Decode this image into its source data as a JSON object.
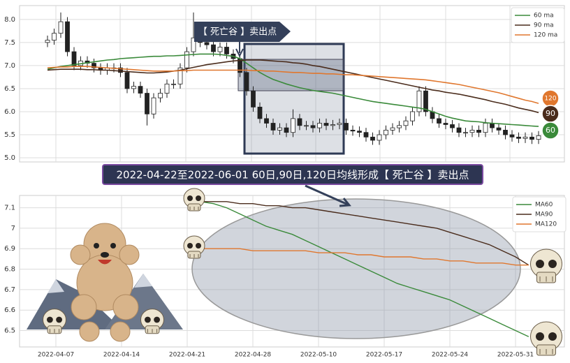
{
  "chart_data": [
    {
      "type": "candlestick",
      "annotation": "【 死亡谷 】卖出点",
      "end_labels": [
        "120",
        "90",
        "60"
      ],
      "open": [
        7.5,
        7.55,
        7.7,
        7.95,
        7.3,
        7.0,
        7.1,
        7.05,
        6.95,
        6.9,
        6.95,
        6.95,
        6.85,
        6.5,
        6.55,
        6.4,
        5.95,
        6.3,
        6.4,
        6.6,
        6.6,
        6.95,
        7.3,
        7.6,
        7.5,
        7.45,
        7.3,
        7.4,
        7.25,
        7.15,
        6.85,
        6.45,
        6.1,
        5.85,
        5.75,
        5.6,
        5.65,
        5.55,
        5.85,
        5.7,
        5.7,
        5.65,
        5.75,
        5.7,
        5.72,
        5.75,
        5.6,
        5.58,
        5.55,
        5.45,
        5.38,
        5.5,
        5.6,
        5.65,
        5.7,
        5.8,
        6.0,
        6.45,
        6.0,
        5.85,
        5.75,
        5.72,
        5.65,
        5.55,
        5.55,
        5.6,
        5.55,
        5.75,
        5.65,
        5.6,
        5.5,
        5.45,
        5.42,
        5.45,
        5.4
      ],
      "high": [
        7.65,
        7.8,
        8.15,
        8.05,
        7.4,
        7.2,
        7.2,
        7.15,
        7.05,
        7.05,
        7.05,
        7.05,
        6.95,
        6.65,
        6.65,
        6.5,
        6.4,
        6.5,
        6.7,
        6.7,
        7.05,
        7.4,
        8.15,
        7.9,
        7.6,
        7.55,
        7.5,
        7.5,
        7.35,
        7.25,
        6.95,
        6.55,
        6.2,
        5.95,
        5.85,
        5.75,
        5.75,
        6.05,
        5.95,
        5.8,
        5.8,
        5.85,
        5.85,
        5.82,
        5.85,
        5.85,
        5.7,
        5.68,
        5.65,
        5.55,
        5.6,
        5.7,
        5.75,
        5.8,
        5.9,
        6.1,
        6.55,
        6.55,
        6.1,
        5.95,
        5.85,
        5.82,
        5.75,
        5.65,
        5.7,
        5.7,
        5.85,
        5.85,
        5.75,
        5.7,
        5.6,
        5.55,
        5.55,
        5.55,
        5.58
      ],
      "low": [
        7.4,
        7.45,
        7.6,
        7.2,
        6.9,
        6.9,
        6.95,
        6.85,
        6.8,
        6.8,
        6.85,
        6.75,
        6.4,
        6.4,
        6.3,
        5.7,
        5.85,
        6.2,
        6.3,
        6.5,
        6.5,
        6.85,
        7.2,
        7.4,
        7.35,
        7.2,
        7.2,
        7.15,
        7.05,
        6.75,
        6.35,
        6.0,
        5.75,
        5.65,
        5.5,
        5.5,
        5.45,
        5.45,
        5.6,
        5.6,
        5.55,
        5.55,
        5.6,
        5.6,
        5.62,
        5.5,
        5.48,
        5.45,
        5.35,
        5.28,
        5.28,
        5.4,
        5.5,
        5.55,
        5.6,
        5.7,
        5.9,
        5.9,
        5.75,
        5.65,
        5.62,
        5.55,
        5.45,
        5.45,
        5.45,
        5.45,
        5.45,
        5.55,
        5.5,
        5.4,
        5.35,
        5.32,
        5.32,
        5.3,
        5.3
      ],
      "close": [
        7.55,
        7.7,
        7.95,
        7.3,
        7.0,
        7.1,
        7.05,
        6.95,
        6.9,
        6.95,
        6.95,
        6.85,
        6.5,
        6.55,
        6.4,
        5.95,
        6.3,
        6.4,
        6.6,
        6.6,
        6.95,
        7.3,
        7.6,
        7.5,
        7.45,
        7.3,
        7.4,
        7.25,
        7.15,
        6.85,
        6.45,
        6.1,
        5.85,
        5.75,
        5.6,
        5.65,
        5.55,
        5.85,
        5.7,
        5.7,
        5.65,
        5.75,
        5.7,
        5.72,
        5.75,
        5.6,
        5.58,
        5.55,
        5.45,
        5.38,
        5.5,
        5.6,
        5.65,
        5.7,
        5.8,
        6.0,
        6.45,
        6.0,
        5.85,
        5.75,
        5.72,
        5.65,
        5.55,
        5.55,
        5.6,
        5.55,
        5.75,
        5.65,
        5.6,
        5.5,
        5.45,
        5.42,
        5.45,
        5.4,
        5.48
      ],
      "series": [
        {
          "name": "60 ma",
          "color": "#3a8a3a",
          "values": [
            6.92,
            6.95,
            6.98,
            7.0,
            7.02,
            7.04,
            7.06,
            7.08,
            7.1,
            7.12,
            7.13,
            7.15,
            7.16,
            7.17,
            7.18,
            7.19,
            7.2,
            7.2,
            7.21,
            7.21,
            7.22,
            7.23,
            7.24,
            7.25,
            7.25,
            7.25,
            7.24,
            7.22,
            7.2,
            7.15,
            7.05,
            6.95,
            6.85,
            6.77,
            6.7,
            6.65,
            6.6,
            6.56,
            6.52,
            6.49,
            6.46,
            6.44,
            6.42,
            6.4,
            6.37,
            6.34,
            6.31,
            6.28,
            6.25,
            6.22,
            6.2,
            6.18,
            6.16,
            6.14,
            6.12,
            6.1,
            6.08,
            6.05,
            6.0,
            5.95,
            5.9,
            5.86,
            5.83,
            5.8,
            5.79,
            5.78,
            5.76,
            5.75,
            5.74,
            5.73,
            5.72,
            5.71,
            5.7,
            5.69,
            5.68
          ]
        },
        {
          "name": "90 ma",
          "color": "#4a2c1c",
          "values": [
            6.9,
            6.91,
            6.92,
            6.92,
            6.92,
            6.92,
            6.91,
            6.91,
            6.9,
            6.9,
            6.89,
            6.88,
            6.87,
            6.86,
            6.85,
            6.84,
            6.84,
            6.85,
            6.86,
            6.88,
            6.9,
            6.93,
            6.96,
            6.99,
            7.02,
            7.04,
            7.06,
            7.08,
            7.1,
            7.11,
            7.12,
            7.12,
            7.12,
            7.11,
            7.1,
            7.09,
            7.08,
            7.06,
            7.05,
            7.03,
            7.0,
            6.98,
            6.95,
            6.92,
            6.89,
            6.86,
            6.83,
            6.8,
            6.77,
            6.74,
            6.71,
            6.68,
            6.65,
            6.62,
            6.59,
            6.56,
            6.53,
            6.5,
            6.47,
            6.45,
            6.42,
            6.4,
            6.38,
            6.35,
            6.32,
            6.29,
            6.26,
            6.22,
            6.19,
            6.16,
            6.12,
            6.08,
            6.05,
            6.02,
            5.98
          ]
        },
        {
          "name": "120 ma",
          "color": "#e0772e",
          "values": [
            6.95,
            6.96,
            6.97,
            6.97,
            6.98,
            6.98,
            6.98,
            6.97,
            6.96,
            6.95,
            6.94,
            6.93,
            6.92,
            6.91,
            6.9,
            6.89,
            6.88,
            6.88,
            6.88,
            6.88,
            6.89,
            6.89,
            6.9,
            6.9,
            6.9,
            6.9,
            6.9,
            6.9,
            6.9,
            6.9,
            6.9,
            6.89,
            6.89,
            6.88,
            6.88,
            6.87,
            6.86,
            6.85,
            6.85,
            6.84,
            6.83,
            6.83,
            6.82,
            6.82,
            6.81,
            6.8,
            6.8,
            6.79,
            6.78,
            6.77,
            6.76,
            6.75,
            6.74,
            6.73,
            6.72,
            6.71,
            6.7,
            6.69,
            6.67,
            6.65,
            6.63,
            6.61,
            6.59,
            6.56,
            6.53,
            6.5,
            6.47,
            6.44,
            6.41,
            6.37,
            6.33,
            6.29,
            6.25,
            6.22,
            6.18
          ]
        }
      ],
      "ylim": [
        4.91,
        8.3
      ],
      "yticks": [
        {
          "value": 5,
          "label": "5.0"
        },
        5.5,
        {
          "value": 6,
          "label": "6.0"
        },
        6.5,
        {
          "value": 7,
          "label": "7.0"
        },
        7.5,
        {
          "value": 8,
          "label": "8.0"
        }
      ],
      "grid": true
    },
    {
      "type": "line",
      "title": "2022-04-22至2022-06-01 60日,90日,120日均线形成【 死亡谷 】卖出点",
      "x": [
        "2022-04-07",
        "2022-04-08",
        "2022-04-11",
        "2022-04-12",
        "2022-04-13",
        "2022-04-14",
        "2022-04-15",
        "2022-04-18",
        "2022-04-19",
        "2022-04-20",
        "2022-04-21",
        "2022-04-22",
        "2022-04-25",
        "2022-04-26",
        "2022-04-27",
        "2022-04-28",
        "2022-04-29",
        "2022-05-05",
        "2022-05-06",
        "2022-05-09",
        "2022-05-10",
        "2022-05-11",
        "2022-05-12",
        "2022-05-13",
        "2022-05-16",
        "2022-05-17",
        "2022-05-18",
        "2022-05-19",
        "2022-05-20",
        "2022-05-23",
        "2022-05-24",
        "2022-05-25",
        "2022-05-26",
        "2022-05-27",
        "2022-05-30",
        "2022-05-31",
        "2022-06-01"
      ],
      "series": [
        {
          "name": "MA60",
          "color": "#3a8a3a",
          "values": [
            null,
            null,
            null,
            null,
            null,
            null,
            null,
            null,
            null,
            null,
            null,
            7.13,
            7.12,
            7.1,
            7.07,
            7.04,
            7.01,
            6.99,
            6.97,
            6.94,
            6.91,
            6.88,
            6.85,
            6.82,
            6.79,
            6.76,
            6.73,
            6.71,
            6.69,
            6.67,
            6.65,
            6.62,
            6.59,
            6.56,
            6.53,
            6.5,
            6.47
          ]
        },
        {
          "name": "MA90",
          "color": "#4a2c1c",
          "values": [
            null,
            null,
            null,
            null,
            null,
            null,
            null,
            null,
            null,
            null,
            null,
            7.13,
            7.13,
            7.13,
            7.12,
            7.12,
            7.11,
            7.11,
            7.1,
            7.1,
            7.09,
            7.08,
            7.07,
            7.06,
            7.05,
            7.04,
            7.03,
            7.02,
            7.01,
            7.0,
            6.98,
            6.96,
            6.94,
            6.92,
            6.89,
            6.86,
            6.82
          ]
        },
        {
          "name": "MA120",
          "color": "#e0772e",
          "values": [
            null,
            null,
            null,
            null,
            null,
            null,
            null,
            null,
            null,
            null,
            null,
            6.9,
            6.9,
            6.9,
            6.9,
            6.89,
            6.89,
            6.89,
            6.89,
            6.89,
            6.88,
            6.88,
            6.88,
            6.87,
            6.87,
            6.86,
            6.86,
            6.86,
            6.85,
            6.85,
            6.84,
            6.84,
            6.83,
            6.83,
            6.83,
            6.82,
            6.82
          ]
        }
      ],
      "ylim": [
        6.42,
        7.16
      ],
      "yticks": [
        6.5,
        6.6,
        6.7,
        6.8,
        6.9,
        7.0,
        7.1
      ],
      "xticks": [
        "2022-04-07",
        "2022-04-14",
        "2022-04-21",
        "2022-04-28",
        "2022-05-10",
        "2022-05-17",
        "2022-05-24",
        "2022-05-31"
      ],
      "grid": true
    }
  ]
}
